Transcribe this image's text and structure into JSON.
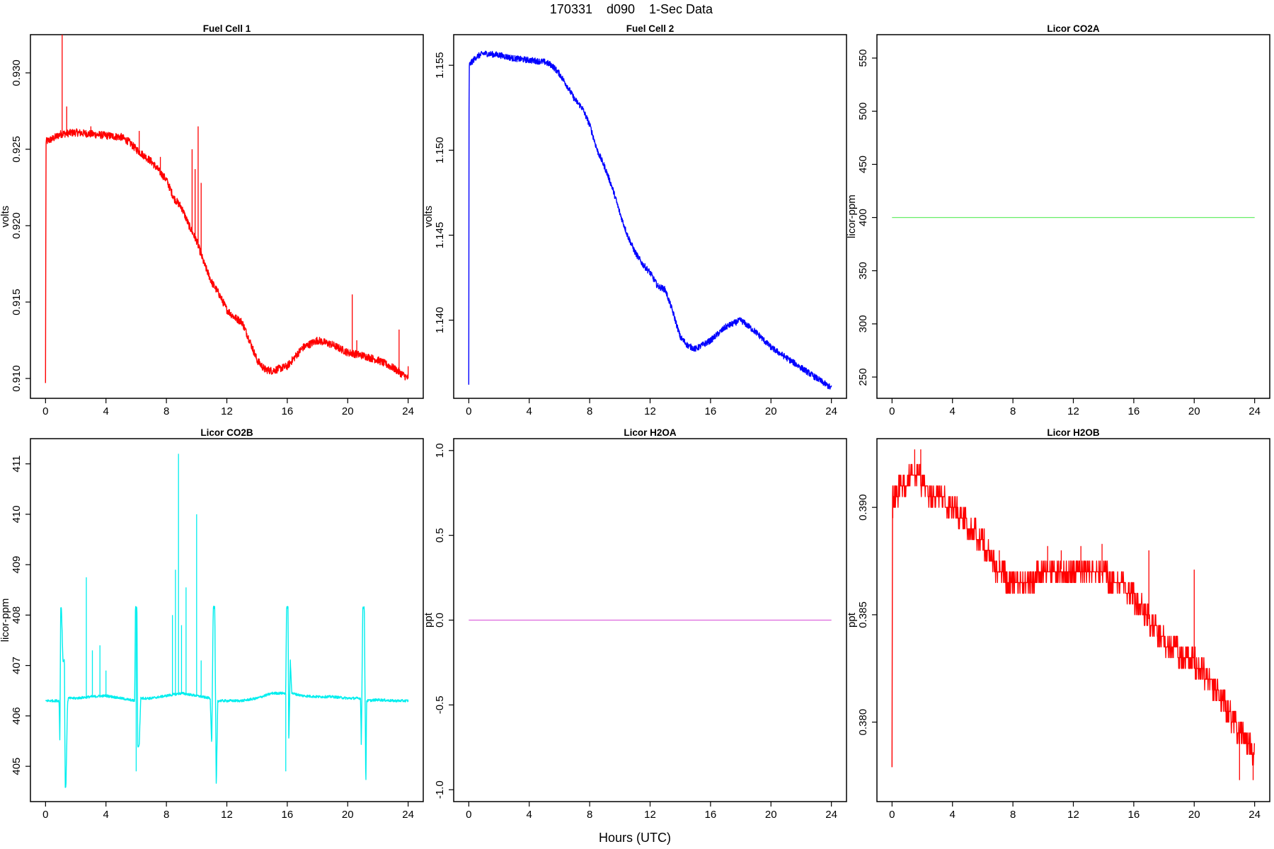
{
  "figure": {
    "title": "170331    d090    1-Sec Data",
    "xlabel": "Hours (UTC)"
  },
  "chart_data": [
    {
      "type": "line",
      "title": "Fuel Cell 1",
      "ylabel": "volts",
      "color": "#ff0000",
      "xlim": [
        -1,
        25
      ],
      "ylim": [
        0.9087,
        0.9325
      ],
      "xticks": [
        0,
        4,
        8,
        12,
        16,
        20,
        24
      ],
      "yticks": [
        0.91,
        0.915,
        0.92,
        0.925,
        0.93
      ],
      "ytick_labels": [
        "0.910",
        "0.915",
        "0.920",
        "0.925",
        "0.930"
      ],
      "noise": 0.00025,
      "x": [
        0,
        0.03,
        0.5,
        1,
        2,
        3,
        4,
        5,
        5.5,
        6,
        7,
        8,
        8.5,
        9,
        9.5,
        10,
        10.5,
        11,
        11.5,
        12,
        12.5,
        13,
        13.5,
        14,
        14.5,
        15,
        16,
        17,
        18,
        19,
        20,
        21,
        22,
        23,
        24
      ],
      "y": [
        0.9097,
        0.9255,
        0.9257,
        0.926,
        0.9261,
        0.926,
        0.9259,
        0.9258,
        0.9255,
        0.925,
        0.9242,
        0.923,
        0.9218,
        0.9212,
        0.92,
        0.919,
        0.9175,
        0.9163,
        0.9155,
        0.9145,
        0.914,
        0.9137,
        0.9125,
        0.9112,
        0.9106,
        0.9105,
        0.9108,
        0.912,
        0.9125,
        0.9122,
        0.9117,
        0.9115,
        0.9112,
        0.9107,
        0.91
      ],
      "spikes": [
        [
          1.1,
          0.9327
        ],
        [
          1.4,
          0.9278
        ],
        [
          3.0,
          0.9265
        ],
        [
          6.2,
          0.9262
        ],
        [
          7.6,
          0.9245
        ],
        [
          9.7,
          0.925
        ],
        [
          9.9,
          0.9237
        ],
        [
          10.1,
          0.9265
        ],
        [
          10.3,
          0.9228
        ],
        [
          20.3,
          0.9155
        ],
        [
          20.6,
          0.9125
        ],
        [
          23.4,
          0.9132
        ],
        [
          24.0,
          0.9108
        ]
      ]
    },
    {
      "type": "line",
      "title": "Fuel Cell 2",
      "ylabel": "volts",
      "color": "#0000ff",
      "xlim": [
        -1,
        25
      ],
      "ylim": [
        1.1354,
        1.1568
      ],
      "xticks": [
        0,
        4,
        8,
        12,
        16,
        20,
        24
      ],
      "yticks": [
        1.14,
        1.145,
        1.15,
        1.155
      ],
      "ytick_labels": [
        "1.140",
        "1.145",
        "1.150",
        "1.155"
      ],
      "noise": 0.00018,
      "x": [
        0,
        0.02,
        0.5,
        1,
        2,
        3,
        4,
        5,
        5.5,
        6,
        6.5,
        7,
        7.5,
        8,
        8.5,
        9,
        9.5,
        10,
        10.5,
        11,
        11.5,
        12,
        12.5,
        13,
        13.5,
        14,
        14.5,
        15,
        16,
        17,
        18,
        19,
        20,
        21,
        22,
        23,
        24
      ],
      "y": [
        1.1362,
        1.155,
        1.1555,
        1.1557,
        1.1556,
        1.1554,
        1.1553,
        1.1552,
        1.155,
        1.1545,
        1.1538,
        1.153,
        1.1525,
        1.1515,
        1.15,
        1.149,
        1.1478,
        1.1463,
        1.145,
        1.144,
        1.1433,
        1.1428,
        1.142,
        1.1418,
        1.1405,
        1.139,
        1.1385,
        1.1383,
        1.1388,
        1.1396,
        1.14,
        1.1393,
        1.1384,
        1.1378,
        1.1372,
        1.1366,
        1.136
      ],
      "spikes": []
    },
    {
      "type": "line",
      "title": "Licor CO2A",
      "ylabel": "licor-ppm",
      "color": "#66ee66",
      "xlim": [
        -1,
        25
      ],
      "ylim": [
        230,
        572
      ],
      "xticks": [
        0,
        4,
        8,
        12,
        16,
        20,
        24
      ],
      "yticks": [
        250,
        300,
        350,
        400,
        450,
        500,
        550
      ],
      "ytick_labels": [
        "250",
        "300",
        "350",
        "400",
        "450",
        "500",
        "550"
      ],
      "noise": 0,
      "x": [
        0,
        24
      ],
      "y": [
        400,
        400
      ],
      "spikes": []
    },
    {
      "type": "line",
      "title": "Licor CO2B",
      "ylabel": "licor-ppm",
      "color": "#00eeee",
      "xlim": [
        -1,
        25
      ],
      "ylim": [
        404.3,
        411.5
      ],
      "xticks": [
        0,
        4,
        8,
        12,
        16,
        20,
        24
      ],
      "yticks": [
        405,
        406,
        407,
        408,
        409,
        410,
        411
      ],
      "ytick_labels": [
        "405",
        "406",
        "407",
        "408",
        "409",
        "410",
        "411"
      ],
      "noise": 0.025,
      "x": [
        0,
        0.9,
        0.95,
        1.0,
        1.05,
        1.15,
        1.25,
        1.3,
        1.35,
        1.45,
        1.5,
        1.55,
        2,
        3,
        4,
        5,
        5.9,
        5.95,
        6.05,
        6.1,
        6.2,
        6.3,
        7,
        8,
        9,
        10,
        10.9,
        11.0,
        11.1,
        11.2,
        11.3,
        11.4,
        12,
        13,
        14,
        15,
        15.9,
        15.95,
        16.05,
        16.1,
        16.2,
        16.3,
        17,
        18,
        19,
        20,
        20.85,
        20.9,
        21.0,
        21.1,
        21.2,
        21.25,
        22,
        23,
        24
      ],
      "y": [
        406.3,
        406.3,
        405.4,
        408.15,
        408.15,
        407.1,
        407.1,
        404.6,
        404.6,
        406.2,
        406.35,
        406.35,
        406.35,
        406.38,
        406.4,
        406.35,
        406.3,
        408.15,
        408.15,
        405.4,
        405.4,
        406.35,
        406.35,
        406.4,
        406.45,
        406.4,
        406.35,
        405.4,
        408.15,
        408.15,
        404.55,
        406.3,
        406.3,
        406.3,
        406.35,
        406.45,
        406.45,
        408.15,
        408.15,
        405.4,
        407.1,
        406.45,
        406.4,
        406.38,
        406.38,
        406.35,
        406.35,
        405.4,
        408.15,
        408.15,
        404.55,
        406.3,
        406.32,
        406.3,
        406.3
      ],
      "spikes": [
        [
          2.7,
          408.75
        ],
        [
          3.1,
          407.3
        ],
        [
          3.6,
          407.4
        ],
        [
          4.0,
          406.9
        ],
        [
          6.0,
          404.9
        ],
        [
          8.4,
          408.0
        ],
        [
          8.6,
          408.9
        ],
        [
          8.8,
          411.2
        ],
        [
          9.0,
          407.8
        ],
        [
          9.3,
          408.55
        ],
        [
          10.0,
          410.0
        ],
        [
          10.3,
          407.1
        ],
        [
          15.9,
          404.9
        ]
      ]
    },
    {
      "type": "line",
      "title": "Licor H2OA",
      "ylabel": "ppt",
      "color": "#dd66dd",
      "xlim": [
        -1,
        25
      ],
      "ylim": [
        -1.07,
        1.07
      ],
      "xticks": [
        0,
        4,
        8,
        12,
        16,
        20,
        24
      ],
      "yticks": [
        -1.0,
        -0.5,
        0.0,
        0.5,
        1.0
      ],
      "ytick_labels": [
        "-1.0",
        "-0.5",
        "0.0",
        "0.5",
        "1.0"
      ],
      "noise": 0,
      "x": [
        0,
        24
      ],
      "y": [
        0,
        0
      ],
      "spikes": []
    },
    {
      "type": "line",
      "title": "Licor H2OB",
      "ylabel": "ppt",
      "color": "#ff0000",
      "xlim": [
        -1,
        25
      ],
      "ylim": [
        0.3763,
        0.3932
      ],
      "xticks": [
        0,
        4,
        8,
        12,
        16,
        20,
        24
      ],
      "yticks": [
        0.38,
        0.385,
        0.39
      ],
      "ytick_labels": [
        "0.380",
        "0.385",
        "0.390"
      ],
      "quantized": true,
      "step": 0.0005,
      "x": [
        0,
        0.03,
        0.5,
        1,
        1.5,
        2,
        2.5,
        3,
        4,
        5,
        6,
        7,
        8,
        9,
        10,
        11,
        12,
        13,
        14,
        15,
        16,
        17,
        18,
        19,
        20,
        21,
        22,
        23,
        24
      ],
      "y": [
        0.3779,
        0.3905,
        0.3908,
        0.3912,
        0.3915,
        0.3912,
        0.3906,
        0.3905,
        0.39,
        0.3892,
        0.3884,
        0.387,
        0.3865,
        0.3865,
        0.387,
        0.3872,
        0.3868,
        0.387,
        0.3868,
        0.3866,
        0.3858,
        0.3848,
        0.3838,
        0.3832,
        0.3828,
        0.382,
        0.3808,
        0.3795,
        0.3785
      ],
      "spikes": [
        [
          0.05,
          0.3895
        ],
        [
          1.5,
          0.3927
        ],
        [
          1.9,
          0.3927
        ],
        [
          7.1,
          0.388
        ],
        [
          10.3,
          0.3882
        ],
        [
          11.2,
          0.388
        ],
        [
          12.5,
          0.3882
        ],
        [
          13.9,
          0.3883
        ],
        [
          17.0,
          0.388
        ],
        [
          20.0,
          0.3871
        ],
        [
          23.0,
          0.3773
        ],
        [
          23.9,
          0.3773
        ]
      ]
    }
  ]
}
